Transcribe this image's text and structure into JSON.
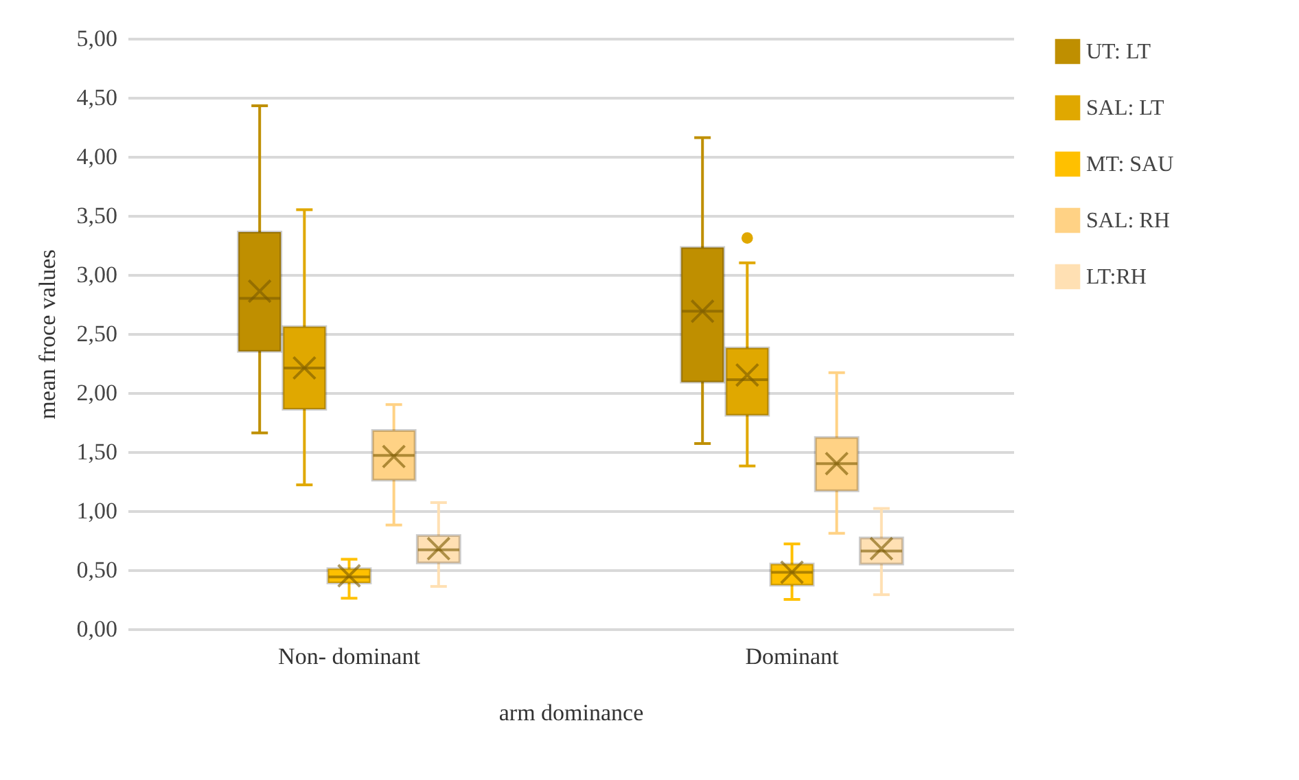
{
  "chart_data": {
    "type": "box",
    "xlabel": "arm dominance",
    "ylabel": "mean froce values",
    "categories": [
      "Non- dominant",
      "Dominant"
    ],
    "series": [
      {
        "name": "UT: LT",
        "color": "#bf8f00",
        "boxes": [
          {
            "low": 1.66,
            "q1": 2.35,
            "median": 2.8,
            "q3": 3.36,
            "high": 4.43,
            "mean": 2.86
          },
          {
            "low": 1.57,
            "q1": 2.09,
            "median": 2.69,
            "q3": 3.23,
            "high": 4.16,
            "mean": 2.69
          }
        ]
      },
      {
        "name": "SAL: LT",
        "color": "#e0a800",
        "boxes": [
          {
            "low": 1.22,
            "q1": 1.86,
            "median": 2.21,
            "q3": 2.56,
            "high": 3.55,
            "mean": 2.21
          },
          {
            "low": 1.38,
            "q1": 1.81,
            "median": 2.11,
            "q3": 2.38,
            "high": 3.1,
            "mean": 2.15,
            "outliers": [
              3.31
            ]
          }
        ]
      },
      {
        "name": "MT: SAU",
        "color": "#ffc000",
        "boxes": [
          {
            "low": 0.26,
            "q1": 0.39,
            "median": 0.44,
            "q3": 0.51,
            "high": 0.59,
            "mean": 0.45
          },
          {
            "low": 0.25,
            "q1": 0.37,
            "median": 0.48,
            "q3": 0.55,
            "high": 0.72,
            "mean": 0.48
          }
        ]
      },
      {
        "name": "SAL: RH",
        "color": "#ffd285",
        "boxes": [
          {
            "low": 0.88,
            "q1": 1.26,
            "median": 1.47,
            "q3": 1.68,
            "high": 1.9,
            "mean": 1.46
          },
          {
            "low": 0.81,
            "q1": 1.17,
            "median": 1.4,
            "q3": 1.62,
            "high": 2.17,
            "mean": 1.4
          }
        ]
      },
      {
        "name": "LT:RH",
        "color": "#ffe0b3",
        "boxes": [
          {
            "low": 0.36,
            "q1": 0.56,
            "median": 0.67,
            "q3": 0.79,
            "high": 1.07,
            "mean": 0.68
          },
          {
            "low": 0.29,
            "q1": 0.55,
            "median": 0.66,
            "q3": 0.77,
            "high": 1.02,
            "mean": 0.68
          }
        ]
      }
    ],
    "ylim": [
      0,
      5
    ],
    "yticks": [
      {
        "value": 0,
        "label": "0,00"
      },
      {
        "value": 0.5,
        "label": "0,50"
      },
      {
        "value": 1,
        "label": "1,00"
      },
      {
        "value": 1.5,
        "label": "1,50"
      },
      {
        "value": 2,
        "label": "2,00"
      },
      {
        "value": 2.5,
        "label": "2,50"
      },
      {
        "value": 3,
        "label": "3,00"
      },
      {
        "value": 3.5,
        "label": "3,50"
      },
      {
        "value": 4,
        "label": "4,00"
      },
      {
        "value": 4.5,
        "label": "4,50"
      },
      {
        "value": 5,
        "label": "5,00"
      }
    ],
    "grid": "y",
    "legend": "right"
  }
}
